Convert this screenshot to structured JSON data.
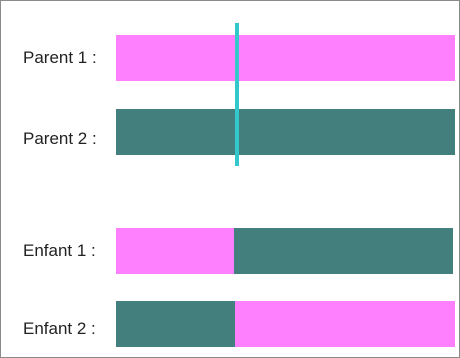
{
  "colors": {
    "parent1": "#ff80ff",
    "parent2": "#427f7d",
    "crossover_point": "#33c8cc"
  },
  "crossover_fraction": 0.35,
  "rows": [
    {
      "label": "Parent 1 :",
      "segments": [
        "parent1",
        "parent1"
      ]
    },
    {
      "label": "Parent 2 :",
      "segments": [
        "parent2",
        "parent2"
      ]
    },
    {
      "label": "Enfant 1 :",
      "segments": [
        "parent1",
        "parent2"
      ]
    },
    {
      "label": "Enfant 2 :",
      "segments": [
        "parent2",
        "parent1"
      ]
    }
  ]
}
